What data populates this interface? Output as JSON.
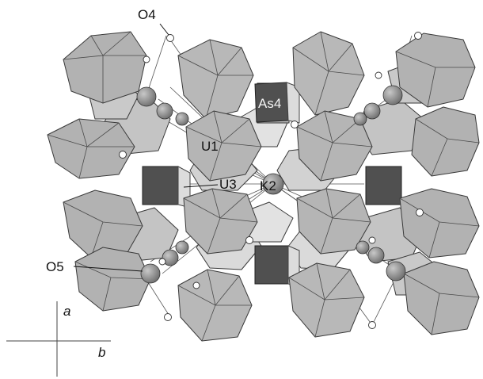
{
  "figure": {
    "labels": {
      "o4": "O4",
      "as4": "As4",
      "u1": "U1",
      "u3": "U3",
      "k2": "K2",
      "o5": "O5"
    },
    "axes": {
      "a": "a",
      "b": "b"
    },
    "colors": {
      "octahedron_face": "#b4b4b4",
      "octahedron_light": "#cfcfcf",
      "octahedron_dark": "#9a9a9a",
      "tetrahedron": "#555555",
      "cation_sphere": "#8a8a8a",
      "oxygen_atom": "#ffffff"
    }
  }
}
